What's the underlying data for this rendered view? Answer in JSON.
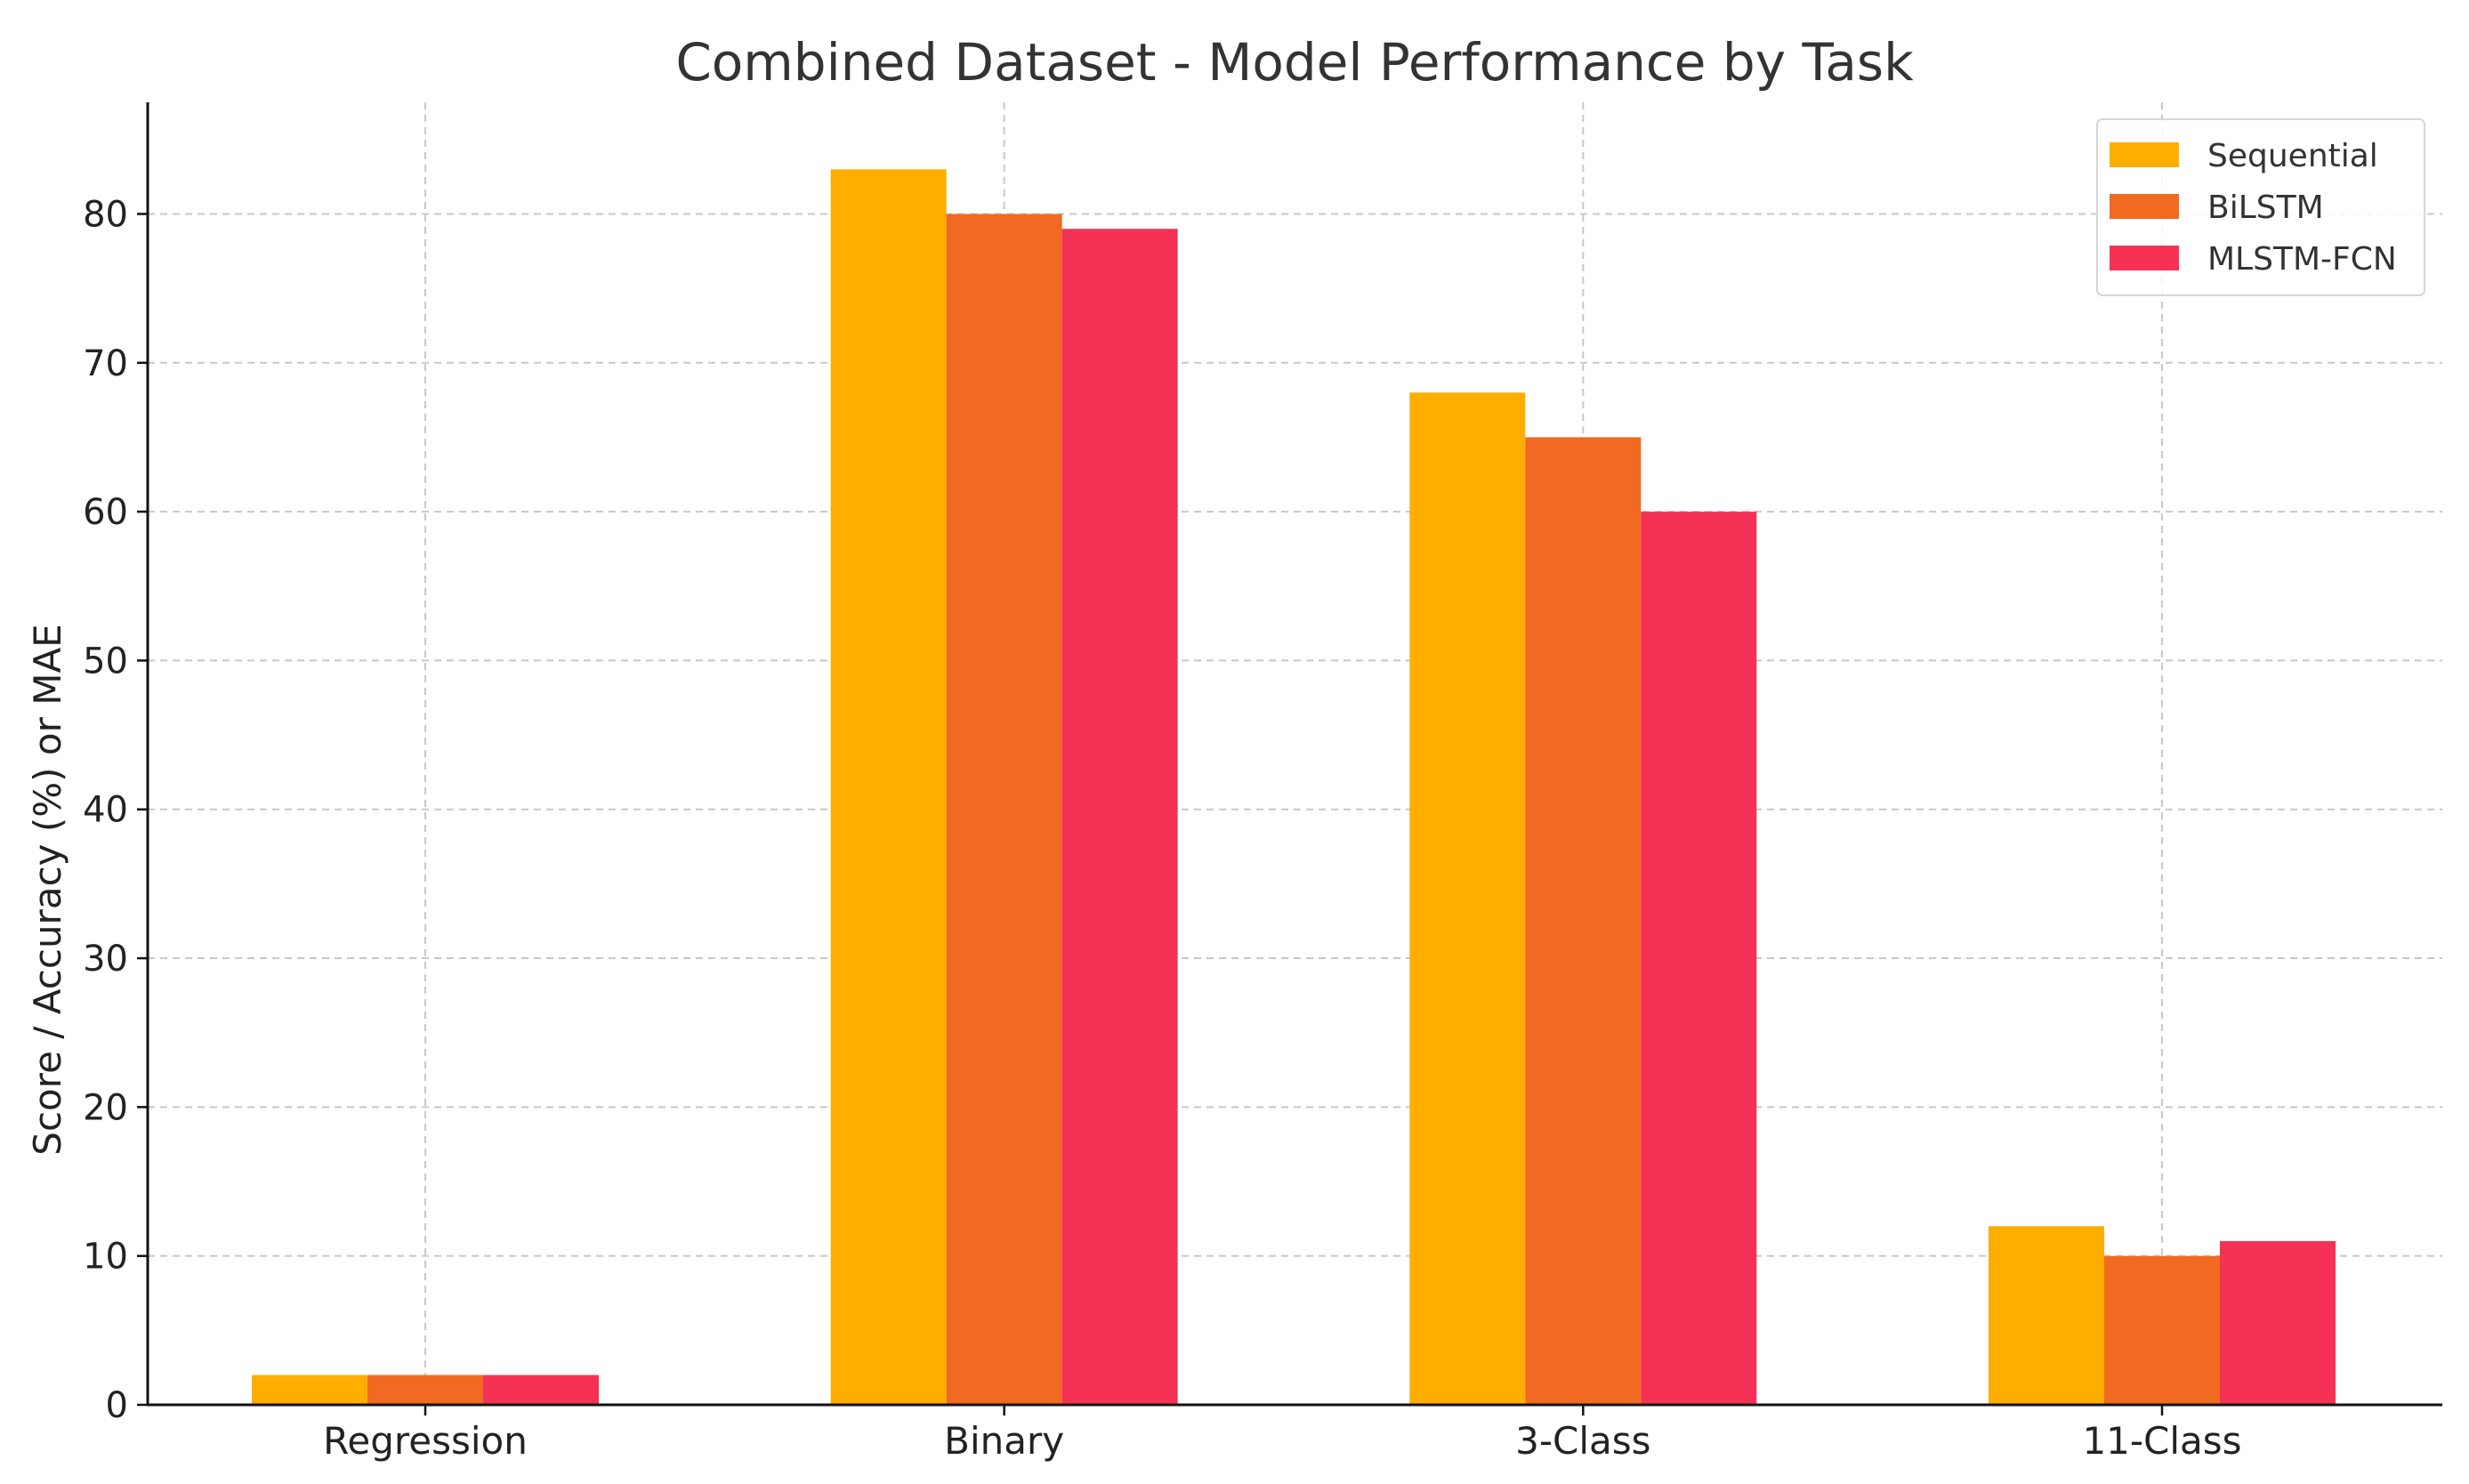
{
  "chart_data": {
    "type": "bar",
    "title": "Combined Dataset - Model Performance by Task",
    "xlabel": "",
    "ylabel": "Score / Accuracy (%) or MAE",
    "categories": [
      "Regression",
      "Binary",
      "3-Class",
      "11-Class"
    ],
    "series": [
      {
        "name": "Sequential",
        "color": "#FFAE00",
        "values": [
          2,
          83,
          68,
          12
        ]
      },
      {
        "name": "BiLSTM",
        "color": "#F26922",
        "values": [
          2,
          80,
          65,
          10
        ]
      },
      {
        "name": "MLSTM-FCN",
        "color": "#F53155",
        "values": [
          2,
          79,
          60,
          11
        ]
      }
    ],
    "ylim": [
      0,
      87.5
    ],
    "yticks": [
      0,
      10,
      20,
      30,
      40,
      50,
      60,
      70,
      80
    ],
    "grid": true,
    "legend_position": "top-right"
  }
}
